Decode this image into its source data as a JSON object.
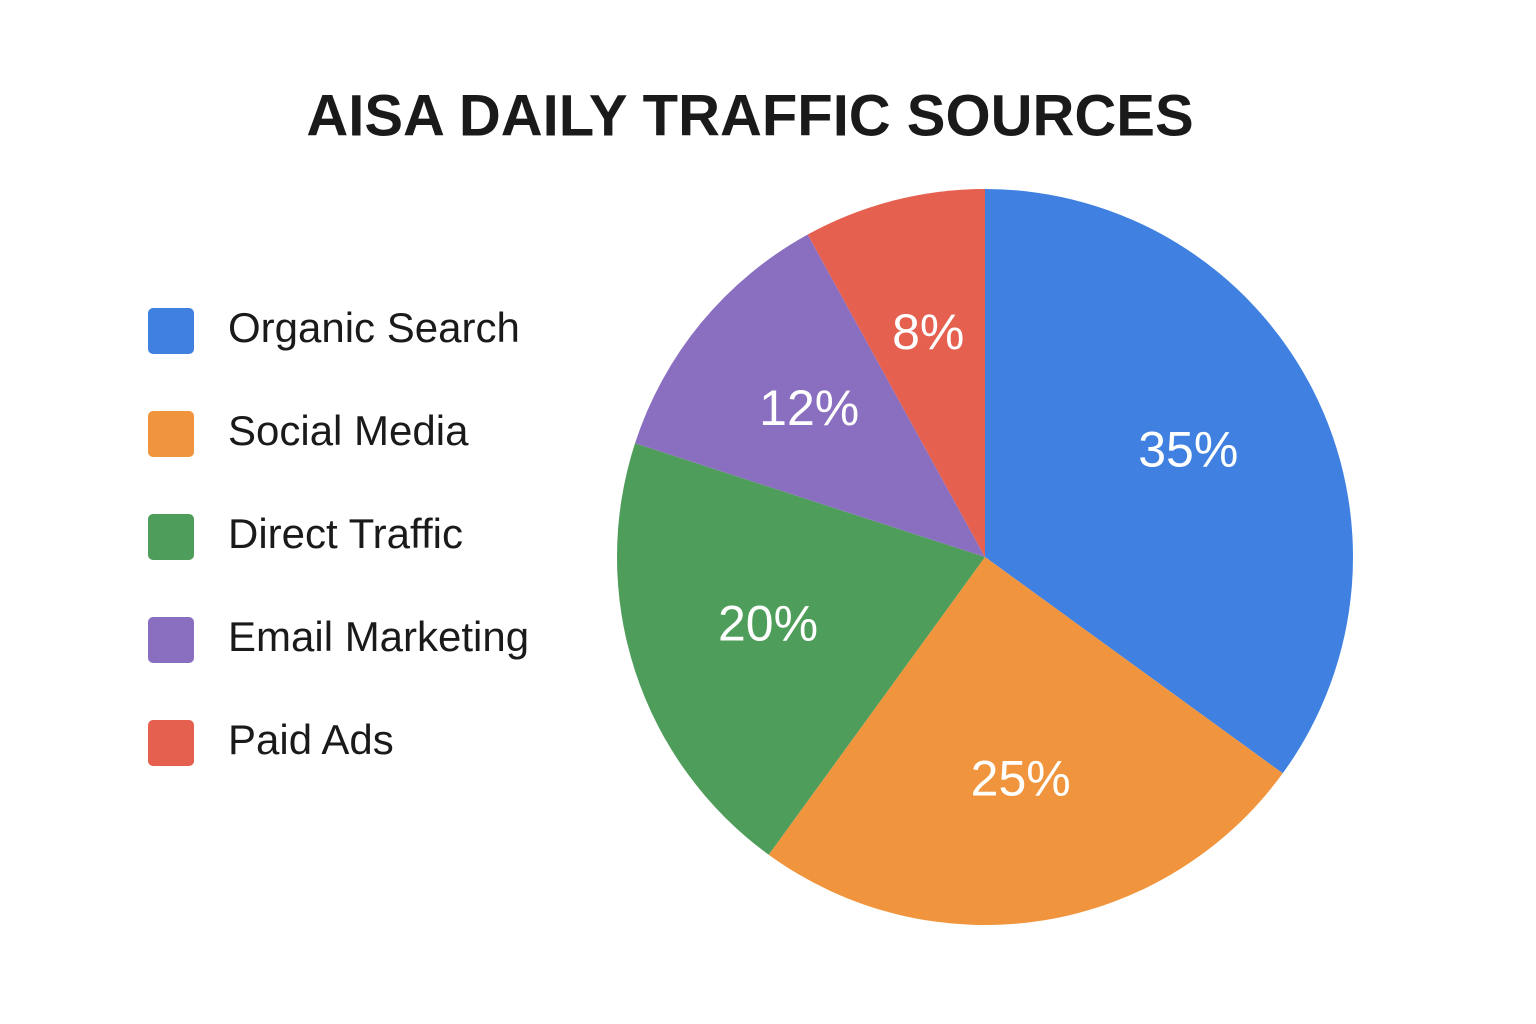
{
  "chart_data": {
    "type": "pie",
    "title": "AISA DAILY TRAFFIC SOURCES",
    "categories": [
      "Organic Search",
      "Social Media",
      "Direct Traffic",
      "Email Marketing",
      "Paid Ads"
    ],
    "values": [
      35,
      25,
      20,
      12,
      8
    ],
    "value_labels": [
      "35%",
      "25%",
      "20%",
      "12%",
      "8%"
    ],
    "colors": [
      "#3f80e0",
      "#f0953d",
      "#4f9d5a",
      "#8a6fc0",
      "#e5604f"
    ],
    "legend": "left"
  }
}
